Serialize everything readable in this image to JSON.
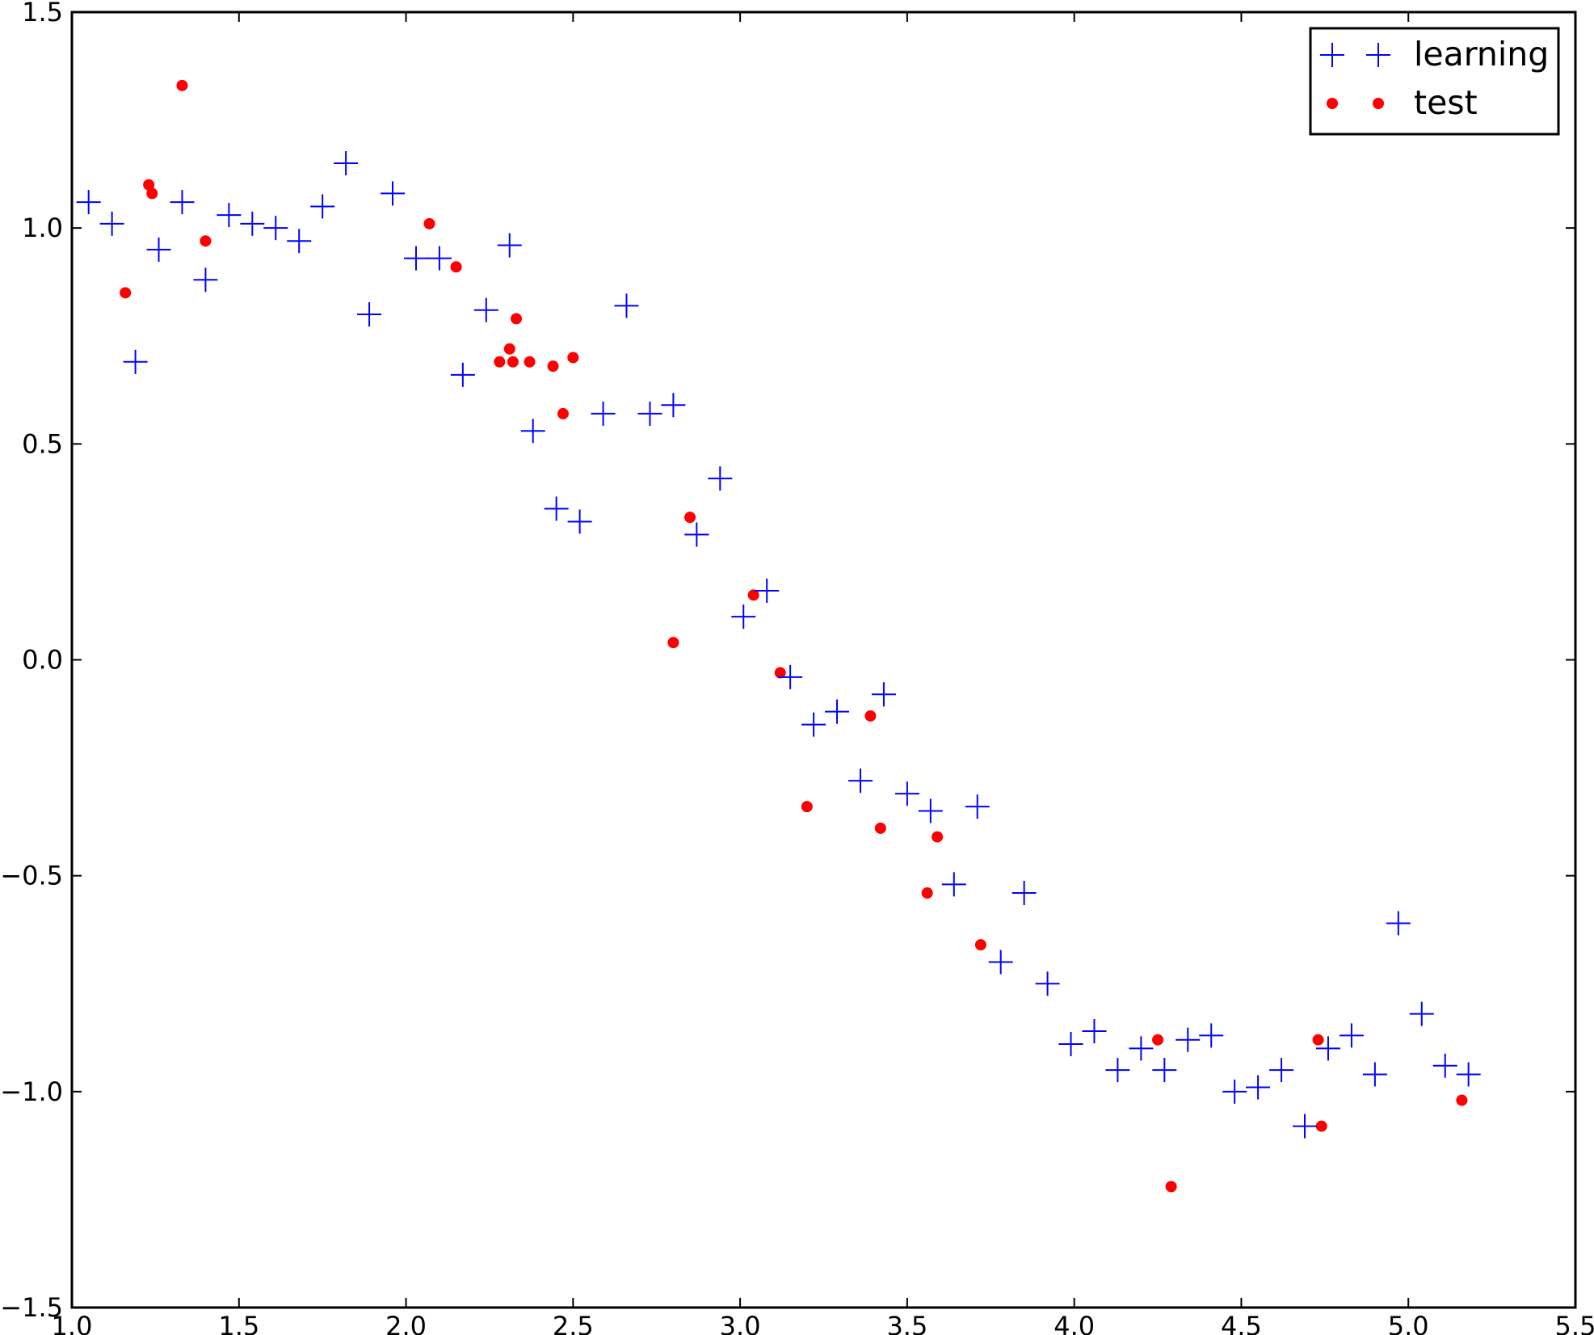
{
  "chart_data": {
    "type": "scatter",
    "xlim": [
      1.0,
      5.5
    ],
    "ylim": [
      -1.5,
      1.5
    ],
    "x_ticks": [
      "1.0",
      "1.5",
      "2.0",
      "2.5",
      "3.0",
      "3.5",
      "4.0",
      "4.5",
      "5.0",
      "5.5"
    ],
    "y_ticks": [
      "1.5",
      "1.0",
      "0.5",
      "0.0",
      "−0.5",
      "−1.0",
      "−1.5"
    ],
    "x_tick_values": [
      1.0,
      1.5,
      2.0,
      2.5,
      3.0,
      3.5,
      4.0,
      4.5,
      5.0,
      5.5
    ],
    "y_tick_values": [
      1.5,
      1.0,
      0.5,
      0.0,
      -0.5,
      -1.0,
      -1.5
    ],
    "grid": false,
    "legend": {
      "placement": "top-right"
    },
    "series": [
      {
        "name": "learning",
        "marker": "plus",
        "color": "#0000ff",
        "points": [
          [
            1.05,
            1.06
          ],
          [
            1.12,
            1.01
          ],
          [
            1.19,
            0.69
          ],
          [
            1.26,
            0.95
          ],
          [
            1.33,
            1.06
          ],
          [
            1.4,
            0.88
          ],
          [
            1.47,
            1.03
          ],
          [
            1.54,
            1.01
          ],
          [
            1.61,
            1.0
          ],
          [
            1.68,
            0.97
          ],
          [
            1.75,
            1.05
          ],
          [
            1.82,
            1.15
          ],
          [
            1.89,
            0.8
          ],
          [
            1.96,
            1.08
          ],
          [
            2.03,
            0.93
          ],
          [
            2.1,
            0.93
          ],
          [
            2.17,
            0.66
          ],
          [
            2.24,
            0.81
          ],
          [
            2.31,
            0.96
          ],
          [
            2.38,
            0.53
          ],
          [
            2.45,
            0.35
          ],
          [
            2.52,
            0.32
          ],
          [
            2.59,
            0.57
          ],
          [
            2.66,
            0.82
          ],
          [
            2.73,
            0.57
          ],
          [
            2.8,
            0.59
          ],
          [
            2.87,
            0.29
          ],
          [
            2.94,
            0.42
          ],
          [
            3.01,
            0.1
          ],
          [
            3.08,
            0.16
          ],
          [
            3.15,
            -0.04
          ],
          [
            3.22,
            -0.15
          ],
          [
            3.29,
            -0.12
          ],
          [
            3.36,
            -0.28
          ],
          [
            3.43,
            -0.08
          ],
          [
            3.5,
            -0.31
          ],
          [
            3.57,
            -0.35
          ],
          [
            3.64,
            -0.52
          ],
          [
            3.71,
            -0.34
          ],
          [
            3.78,
            -0.7
          ],
          [
            3.85,
            -0.54
          ],
          [
            3.92,
            -0.75
          ],
          [
            3.99,
            -0.89
          ],
          [
            4.06,
            -0.86
          ],
          [
            4.13,
            -0.95
          ],
          [
            4.2,
            -0.9
          ],
          [
            4.27,
            -0.95
          ],
          [
            4.34,
            -0.88
          ],
          [
            4.41,
            -0.87
          ],
          [
            4.48,
            -1.0
          ],
          [
            4.55,
            -0.99
          ],
          [
            4.62,
            -0.95
          ],
          [
            4.69,
            -1.08
          ],
          [
            4.76,
            -0.9
          ],
          [
            4.83,
            -0.87
          ],
          [
            4.9,
            -0.96
          ],
          [
            4.97,
            -0.61
          ],
          [
            5.04,
            -0.82
          ],
          [
            5.11,
            -0.94
          ],
          [
            5.18,
            -0.96
          ]
        ]
      },
      {
        "name": "test",
        "marker": "circle",
        "color": "#ff0000",
        "points": [
          [
            1.16,
            0.85
          ],
          [
            1.23,
            1.1
          ],
          [
            1.24,
            1.08
          ],
          [
            1.33,
            1.33
          ],
          [
            1.4,
            0.97
          ],
          [
            2.07,
            1.01
          ],
          [
            2.15,
            0.91
          ],
          [
            2.28,
            0.69
          ],
          [
            2.31,
            0.72
          ],
          [
            2.32,
            0.69
          ],
          [
            2.33,
            0.79
          ],
          [
            2.37,
            0.69
          ],
          [
            2.44,
            0.68
          ],
          [
            2.47,
            0.57
          ],
          [
            2.5,
            0.7
          ],
          [
            2.8,
            0.04
          ],
          [
            2.85,
            0.33
          ],
          [
            3.04,
            0.15
          ],
          [
            3.12,
            -0.03
          ],
          [
            3.2,
            -0.34
          ],
          [
            3.39,
            -0.13
          ],
          [
            3.42,
            -0.39
          ],
          [
            3.56,
            -0.54
          ],
          [
            3.59,
            -0.41
          ],
          [
            3.72,
            -0.66
          ],
          [
            4.25,
            -0.88
          ],
          [
            4.29,
            -1.22
          ],
          [
            4.73,
            -0.88
          ],
          [
            4.74,
            -1.08
          ],
          [
            5.16,
            -1.02
          ]
        ]
      }
    ]
  }
}
